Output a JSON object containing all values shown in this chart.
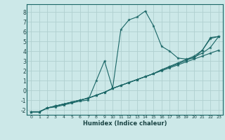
{
  "title": "",
  "xlabel": "Humidex (Indice chaleur)",
  "ylabel": "",
  "xlim": [
    -0.5,
    23.5
  ],
  "ylim": [
    -2.5,
    8.8
  ],
  "xticks": [
    0,
    1,
    2,
    3,
    4,
    5,
    6,
    7,
    8,
    9,
    10,
    11,
    12,
    13,
    14,
    15,
    16,
    17,
    18,
    19,
    20,
    21,
    22,
    23
  ],
  "yticks": [
    -2,
    -1,
    0,
    1,
    2,
    3,
    4,
    5,
    6,
    7,
    8
  ],
  "bg_color": "#cce8e8",
  "grid_color": "#b0d0d0",
  "line_color": "#1a6666",
  "line1_x": [
    0,
    1,
    2,
    3,
    4,
    5,
    6,
    7,
    8,
    9,
    10,
    11,
    12,
    13,
    14,
    15,
    16,
    17,
    18,
    19,
    20,
    21,
    22,
    23
  ],
  "line1_y": [
    -2.2,
    -2.2,
    -1.8,
    -1.7,
    -1.5,
    -1.3,
    -1.1,
    -1.0,
    1.0,
    3.0,
    0.2,
    6.2,
    7.2,
    7.5,
    8.1,
    6.6,
    4.5,
    4.0,
    3.3,
    3.2,
    3.3,
    4.1,
    5.4,
    5.5
  ],
  "line2_x": [
    0,
    1,
    2,
    3,
    4,
    5,
    6,
    7,
    8,
    9,
    10,
    11,
    12,
    13,
    14,
    15,
    16,
    17,
    18,
    19,
    20,
    21,
    22,
    23
  ],
  "line2_y": [
    -2.2,
    -2.2,
    -1.8,
    -1.6,
    -1.4,
    -1.2,
    -1.0,
    -0.8,
    -0.5,
    -0.2,
    0.2,
    0.5,
    0.8,
    1.1,
    1.4,
    1.7,
    2.0,
    2.3,
    2.6,
    2.9,
    3.2,
    3.5,
    3.8,
    4.1
  ],
  "line3_x": [
    0,
    1,
    2,
    3,
    4,
    5,
    6,
    7,
    8,
    9,
    10,
    11,
    12,
    13,
    14,
    15,
    16,
    17,
    18,
    19,
    20,
    21,
    22,
    23
  ],
  "line3_y": [
    -2.2,
    -2.2,
    -1.8,
    -1.6,
    -1.4,
    -1.2,
    -1.0,
    -0.8,
    -0.5,
    -0.2,
    0.2,
    0.5,
    0.8,
    1.1,
    1.4,
    1.7,
    2.1,
    2.4,
    2.7,
    3.05,
    3.4,
    3.8,
    4.4,
    5.5
  ],
  "line4_x": [
    0,
    1,
    2,
    3,
    4,
    5,
    6,
    7,
    8,
    9,
    10,
    11,
    12,
    13,
    14,
    15,
    16,
    17,
    18,
    19,
    20,
    21,
    22,
    23
  ],
  "line4_y": [
    -2.2,
    -2.2,
    -1.8,
    -1.6,
    -1.4,
    -1.2,
    -1.0,
    -0.8,
    -0.5,
    -0.2,
    0.2,
    0.5,
    0.8,
    1.1,
    1.4,
    1.7,
    2.1,
    2.45,
    2.8,
    3.15,
    3.5,
    4.1,
    5.3,
    5.5
  ]
}
